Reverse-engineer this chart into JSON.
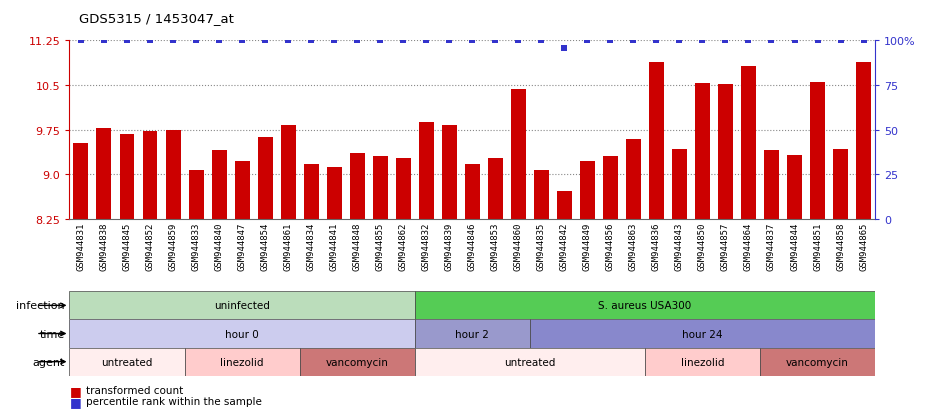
{
  "title": "GDS5315 / 1453047_at",
  "samples": [
    "GSM944831",
    "GSM944838",
    "GSM944845",
    "GSM944852",
    "GSM944859",
    "GSM944833",
    "GSM944840",
    "GSM944847",
    "GSM944854",
    "GSM944861",
    "GSM944834",
    "GSM944841",
    "GSM944848",
    "GSM944855",
    "GSM944862",
    "GSM944832",
    "GSM944839",
    "GSM944846",
    "GSM944853",
    "GSM944860",
    "GSM944835",
    "GSM944842",
    "GSM944849",
    "GSM944856",
    "GSM944863",
    "GSM944836",
    "GSM944843",
    "GSM944850",
    "GSM944857",
    "GSM944864",
    "GSM944837",
    "GSM944844",
    "GSM944851",
    "GSM944858",
    "GSM944865"
  ],
  "bar_values": [
    9.52,
    9.78,
    9.68,
    9.72,
    9.74,
    9.07,
    9.4,
    9.22,
    9.62,
    9.82,
    9.18,
    9.12,
    9.35,
    9.3,
    9.27,
    9.88,
    9.82,
    9.17,
    9.27,
    10.43,
    9.07,
    8.72,
    9.22,
    9.3,
    9.6,
    10.88,
    9.42,
    10.53,
    10.52,
    10.82,
    9.4,
    9.33,
    10.55,
    9.42,
    10.88
  ],
  "percentile_values": [
    100,
    100,
    100,
    100,
    100,
    100,
    100,
    100,
    100,
    100,
    100,
    100,
    100,
    100,
    100,
    100,
    100,
    100,
    100,
    100,
    100,
    96,
    100,
    100,
    100,
    100,
    100,
    100,
    100,
    100,
    100,
    100,
    100,
    100,
    100
  ],
  "ylim": [
    8.25,
    11.25
  ],
  "yticks_left": [
    8.25,
    9.0,
    9.75,
    10.5,
    11.25
  ],
  "yticks_right": [
    0,
    25,
    50,
    75,
    100
  ],
  "bar_color": "#cc0000",
  "dot_color": "#3333cc",
  "grid_color": "#888888",
  "background_color": "#ffffff",
  "infection_row": {
    "label": "infection",
    "segments": [
      {
        "text": "uninfected",
        "start": 0,
        "end": 15,
        "color": "#bbddbb"
      },
      {
        "text": "S. aureus USA300",
        "start": 15,
        "end": 35,
        "color": "#55cc55"
      }
    ]
  },
  "time_row": {
    "label": "time",
    "segments": [
      {
        "text": "hour 0",
        "start": 0,
        "end": 15,
        "color": "#ccccee"
      },
      {
        "text": "hour 2",
        "start": 15,
        "end": 20,
        "color": "#9999cc"
      },
      {
        "text": "hour 24",
        "start": 20,
        "end": 35,
        "color": "#8888cc"
      }
    ]
  },
  "agent_row": {
    "label": "agent",
    "segments": [
      {
        "text": "untreated",
        "start": 0,
        "end": 5,
        "color": "#ffeeee"
      },
      {
        "text": "linezolid",
        "start": 5,
        "end": 10,
        "color": "#ffcccc"
      },
      {
        "text": "vancomycin",
        "start": 10,
        "end": 15,
        "color": "#cc7777"
      },
      {
        "text": "untreated",
        "start": 15,
        "end": 25,
        "color": "#ffeeee"
      },
      {
        "text": "linezolid",
        "start": 25,
        "end": 30,
        "color": "#ffcccc"
      },
      {
        "text": "vancomycin",
        "start": 30,
        "end": 35,
        "color": "#cc7777"
      }
    ]
  }
}
